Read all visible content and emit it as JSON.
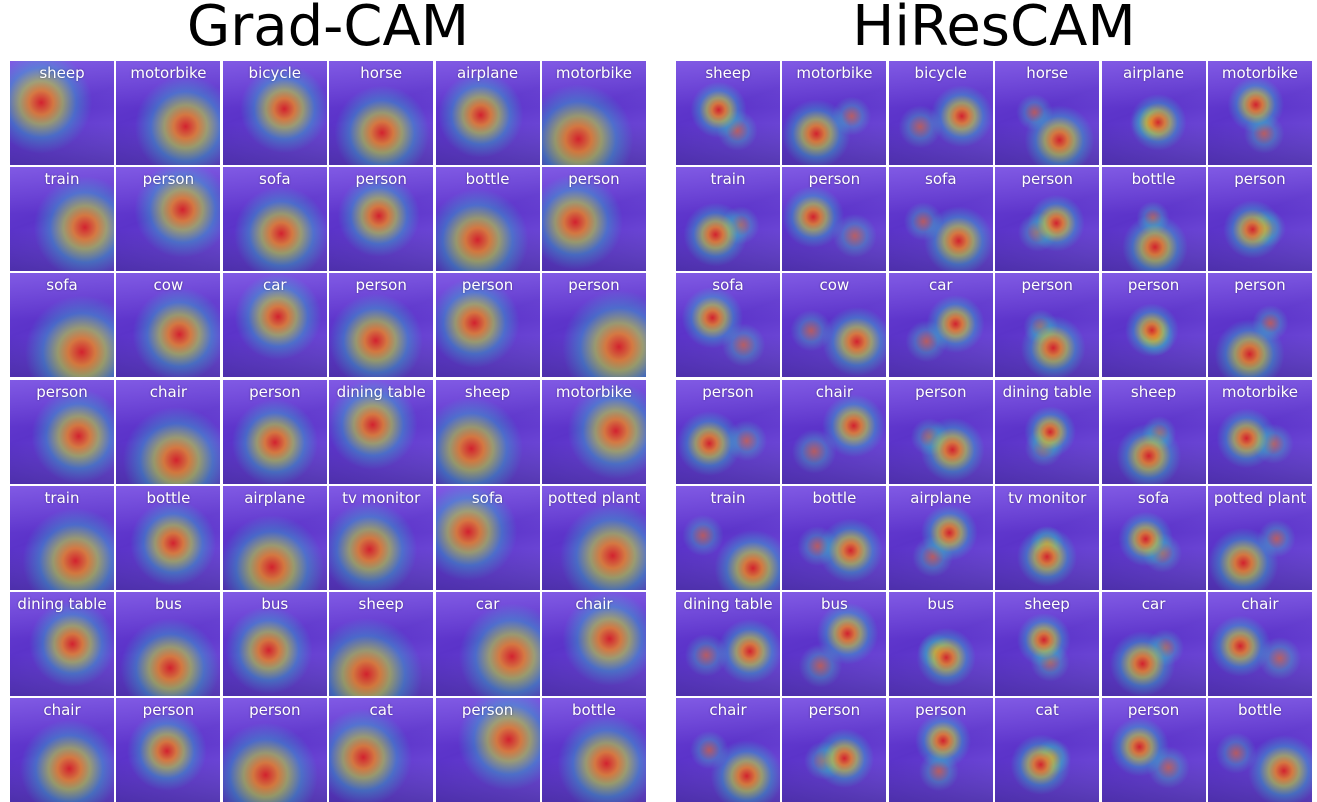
{
  "panels": [
    {
      "title": "Grad-CAM",
      "labels": [
        "sheep",
        "motorbike",
        "bicycle",
        "horse",
        "airplane",
        "motorbike",
        "train",
        "person",
        "sofa",
        "person",
        "bottle",
        "person",
        "sofa",
        "cow",
        "car",
        "person",
        "person",
        "person",
        "person",
        "chair",
        "person",
        "dining table",
        "sheep",
        "motorbike",
        "train",
        "bottle",
        "airplane",
        "tv monitor",
        "sofa",
        "potted plant",
        "dining table",
        "bus",
        "bus",
        "sheep",
        "car",
        "chair",
        "chair",
        "person",
        "person",
        "cat",
        "person",
        "bottle"
      ]
    },
    {
      "title": "HiResCAM",
      "labels": [
        "sheep",
        "motorbike",
        "bicycle",
        "horse",
        "airplane",
        "motorbike",
        "train",
        "person",
        "sofa",
        "person",
        "bottle",
        "person",
        "sofa",
        "cow",
        "car",
        "person",
        "person",
        "person",
        "person",
        "chair",
        "person",
        "dining table",
        "sheep",
        "motorbike",
        "train",
        "bottle",
        "airplane",
        "tv monitor",
        "sofa",
        "potted plant",
        "dining table",
        "bus",
        "bus",
        "sheep",
        "car",
        "chair",
        "chair",
        "person",
        "person",
        "cat",
        "person",
        "bottle"
      ]
    }
  ]
}
